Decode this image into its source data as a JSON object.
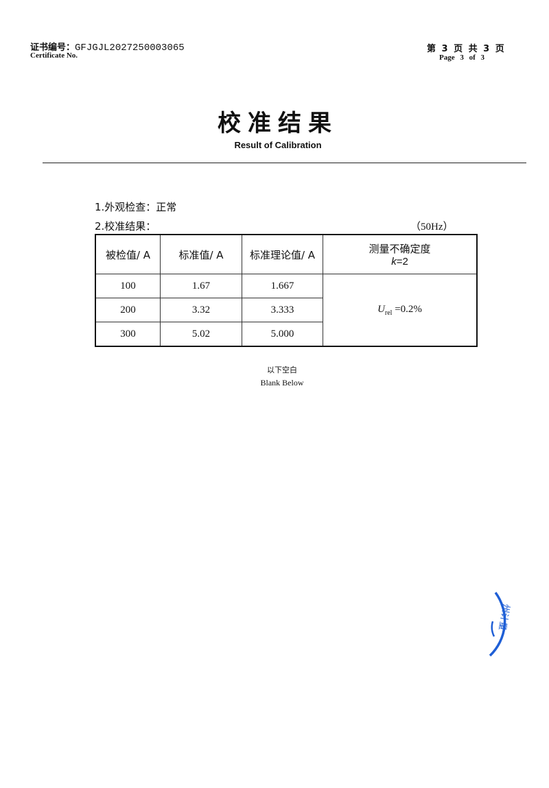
{
  "header": {
    "cert_label_cn": "证书编号：",
    "cert_number": "GFJGJL2027250003065",
    "cert_label_en": "Certificate No.",
    "page_cn": "第 3 页  共 3 页",
    "page_en": "Page 3 of 3"
  },
  "title": {
    "cn": "校准结果",
    "en": "Result of Calibration"
  },
  "sections": {
    "appearance": "1.外观检查：正常",
    "results": "2.校准结果：",
    "frequency": "（50Hz）"
  },
  "table": {
    "headers": [
      "被检值/ A",
      "标准值/ A",
      "标准理论值/ A",
      "测量不确定度"
    ],
    "k_label": "k",
    "k_value": "=2",
    "rows": [
      [
        "100",
        "1.67",
        "1.667"
      ],
      [
        "200",
        "3.32",
        "3.333"
      ],
      [
        "300",
        "5.02",
        "5.000"
      ]
    ],
    "uncertainty_symbol": "U",
    "uncertainty_sub": "rel",
    "uncertainty_value": " =0.2%"
  },
  "footer": {
    "blank_cn": "以下空白",
    "blank_en": "Blank Below"
  },
  "seal": {
    "text": "州计量",
    "color": "#1f5fd6"
  }
}
